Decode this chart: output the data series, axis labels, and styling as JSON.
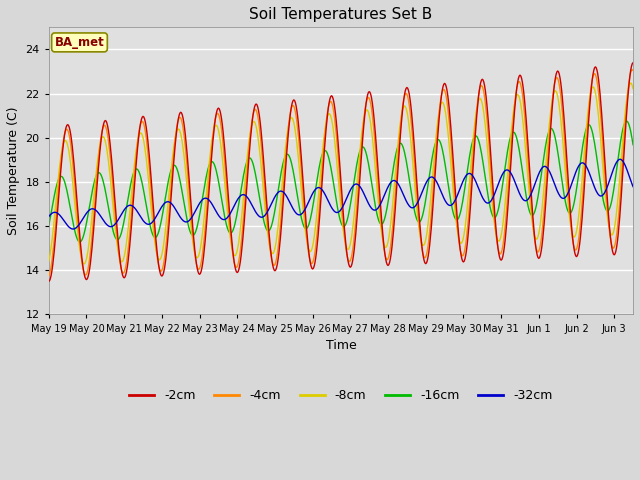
{
  "title": "Soil Temperatures Set B",
  "xlabel": "Time",
  "ylabel": "Soil Temperature (C)",
  "ylim": [
    12,
    25
  ],
  "yticks": [
    12,
    14,
    16,
    18,
    20,
    22,
    24
  ],
  "annotation": "BA_met",
  "fig_facecolor": "#d8d8d8",
  "plot_bg_color": "#e0e0e0",
  "series_colors": {
    "-2cm": "#cc0000",
    "-4cm": "#ff8800",
    "-8cm": "#ddcc00",
    "-16cm": "#00bb00",
    "-32cm": "#0000cc"
  },
  "xtick_labels": [
    "May 19",
    "May 20",
    "May 21",
    "May 22",
    "May 23",
    "May 24",
    "May 25",
    "May 26",
    "May 27",
    "May 28",
    "May 29",
    "May 30",
    "May 31",
    "Jun 1",
    "Jun 2",
    "Jun 3"
  ]
}
